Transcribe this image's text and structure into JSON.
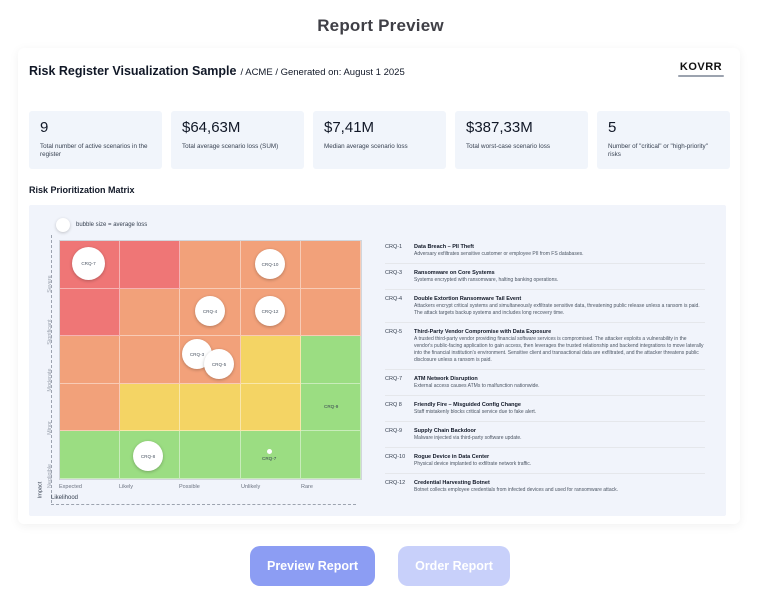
{
  "page": {
    "title": "Report Preview"
  },
  "report": {
    "title": "Risk Register Visualization Sample",
    "subtitle": "/ ACME / Generated on: August 1 2025",
    "logo_text": "KOVRR"
  },
  "kpis": [
    {
      "value": "9",
      "label": "Total number of active scenarios in the register"
    },
    {
      "value": "$64,63M",
      "label": "Total average scenario loss (SUM)"
    },
    {
      "value": "$7,41M",
      "label": "Median average scenario loss"
    },
    {
      "value": "$387,33M",
      "label": "Total worst-case scenario loss"
    },
    {
      "value": "5",
      "label": "Number of \"critical\" or \"high-priority\" risks"
    }
  ],
  "matrix": {
    "title": "Risk Prioritization Matrix",
    "legend": "bubble size = average loss",
    "impact_label": "Impact",
    "likelihood_label": "Likelihood",
    "rows": [
      "Severe",
      "Significant",
      "Moderate",
      "Minor",
      "Negligible"
    ],
    "cols": [
      "Expected",
      "Likely",
      "Possible",
      "Unlikely",
      "Rare"
    ],
    "colors": {
      "red": "#ef7676",
      "salmon": "#f2a17a",
      "yellow": "#f4d464",
      "green": "#9bdd82"
    },
    "cells": [
      [
        "red",
        "red",
        "salmon",
        "salmon",
        "salmon"
      ],
      [
        "red",
        "salmon",
        "salmon",
        "salmon",
        "salmon"
      ],
      [
        "salmon",
        "salmon",
        "salmon",
        "yellow",
        "green"
      ],
      [
        "salmon",
        "yellow",
        "yellow",
        "yellow",
        "green"
      ],
      [
        "green",
        "green",
        "green",
        "green",
        "green"
      ]
    ],
    "bubbles": [
      {
        "id": "CRQ-7",
        "impact": "Severe",
        "likelihood": "Expected"
      },
      {
        "id": "CRQ-10",
        "impact": "Severe",
        "likelihood": "Unlikely"
      },
      {
        "id": "CRQ-4",
        "impact": "Significant",
        "likelihood": "Possible"
      },
      {
        "id": "CRQ-12",
        "impact": "Significant",
        "likelihood": "Unlikely"
      },
      {
        "id": "CRQ-3",
        "impact": "Moderate",
        "likelihood": "Possible"
      },
      {
        "id": "CRQ-5",
        "impact": "Moderate",
        "likelihood": "Possible"
      },
      {
        "id": "CRQ-9",
        "impact": "Minor",
        "likelihood": "Rare"
      },
      {
        "id": "CRQ-8",
        "impact": "Negligible",
        "likelihood": "Likely"
      },
      {
        "id": "CRQ-7",
        "impact": "Negligible",
        "likelihood": "Unlikely"
      }
    ]
  },
  "risks": [
    {
      "id": "CRQ-1",
      "title": "Data Breach – PII Theft",
      "desc": "Adversary exfiltrates sensitive customer or employee PII from FS databases."
    },
    {
      "id": "CRQ-3",
      "title": "Ransomware on Core Systems",
      "desc": "Systems encrypted with ransomware, halting banking operations."
    },
    {
      "id": "CRQ-4",
      "title": "Double Extortion Ransomware Tail Event",
      "desc": "Attackers encrypt critical systems and simultaneously exfiltrate sensitive data, threatening public release unless a ransom is paid. The attack targets backup systems and includes long recovery time."
    },
    {
      "id": "CRQ-5",
      "title": "Third-Party Vendor Compromise with Data Exposure",
      "desc": "A trusted third-party vendor providing financial software services is compromised. The attacker exploits a vulnerability in the vendor's public-facing application to gain access, then leverages the trusted relationship and backend integrations to move laterally into the financial institution's environment. Sensitive client and transactional data are exfiltrated, and the attacker threatens public disclosure unless a ransom is paid."
    },
    {
      "id": "CRQ-7",
      "title": "ATM Network Disruption",
      "desc": "External access causes ATMs to malfunction nationwide."
    },
    {
      "id": "CRQ 8",
      "title": "Friendly Fire – Misguided Config Change",
      "desc": "Staff mistakenly blocks critical service due to fake alert."
    },
    {
      "id": "CRQ-9",
      "title": "Supply Chain Backdoor",
      "desc": "Malware injected via third-party software update."
    },
    {
      "id": "CRQ-10",
      "title": "Rogue Device in Data Center",
      "desc": "Physical device implanted to exfiltrate network traffic."
    },
    {
      "id": "CRQ-12",
      "title": "Credential Harvesting Botnet",
      "desc": "Botnet collects employee credentials from infected devices and used for ransomware attack."
    }
  ],
  "buttons": {
    "preview": "Preview Report",
    "order": "Order Report"
  }
}
